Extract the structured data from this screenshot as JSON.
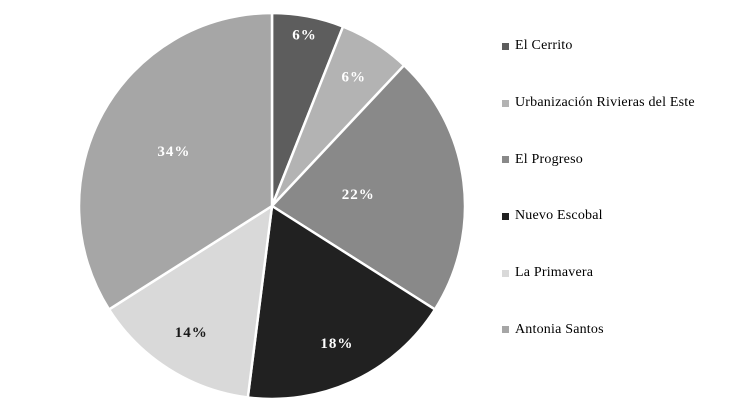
{
  "chart_data": {
    "type": "pie",
    "categories": [
      "El Cerrito",
      "Urbanización Rivieras del Este",
      "El Progreso",
      "Nuevo Escobal",
      "La Primavera",
      "Antonia Santos"
    ],
    "values": [
      6,
      6,
      22,
      18,
      14,
      34
    ],
    "labels": [
      "6%",
      "6%",
      "22%",
      "18%",
      "14%",
      "34%"
    ],
    "colors": [
      "#5d5d5d",
      "#b3b3b3",
      "#898989",
      "#212121",
      "#d9d9d9",
      "#a6a6a6"
    ],
    "label_colors": [
      "#ffffff",
      "#ffffff",
      "#ffffff",
      "#ffffff",
      "#1a1a1a",
      "#ffffff"
    ],
    "slice_border_color": "#ffffff",
    "background_color": "#ffffff",
    "start_angle_deg": 0,
    "direction": "clockwise",
    "legend_position": "right",
    "label_radius_frac": [
      0.9,
      0.79,
      0.45,
      0.79,
      0.78,
      0.58
    ]
  }
}
